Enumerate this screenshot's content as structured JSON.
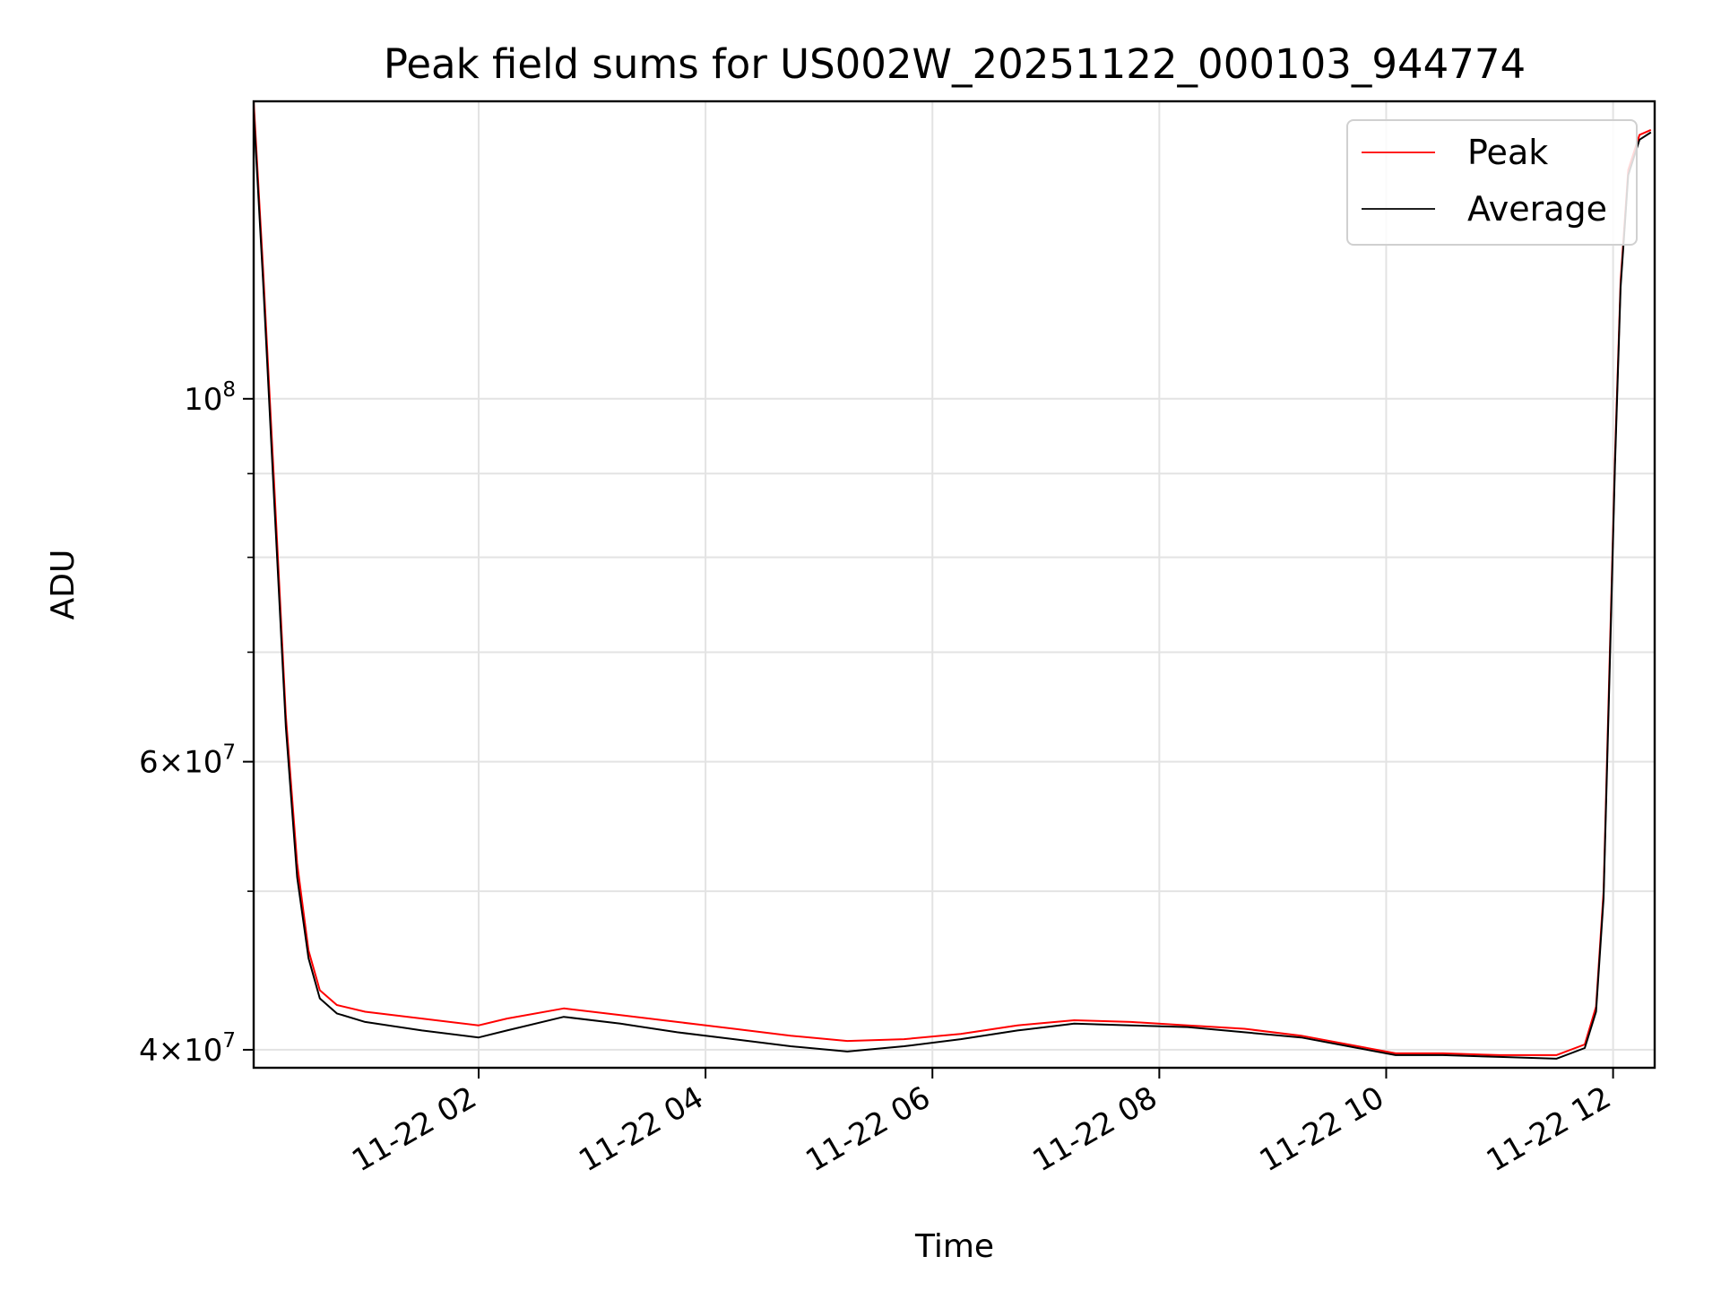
{
  "chart_data": {
    "type": "line",
    "title": "Peak field sums for US002W_20251122_000103_944774",
    "xlabel": "Time",
    "ylabel": "ADU",
    "y_scale": "log",
    "grid": true,
    "legend_position": "top-right",
    "xlim": [
      "2025-11-22 00:01",
      "2025-11-22 12:22"
    ],
    "ylim": [
      39000000,
      152000000
    ],
    "x_ticks": [
      "11-22 02",
      "11-22 04",
      "11-22 06",
      "11-22 08",
      "11-22 10",
      "11-22 12"
    ],
    "x_tick_times": [
      "2025-11-22 02:00",
      "2025-11-22 04:00",
      "2025-11-22 06:00",
      "2025-11-22 08:00",
      "2025-11-22 10:00",
      "2025-11-22 12:00"
    ],
    "y_ticks": [
      {
        "value": 100000000,
        "mantissa": "",
        "exponent": "8"
      },
      {
        "value": 60000000,
        "mantissa": "6",
        "exponent": "7"
      },
      {
        "value": 40000000,
        "mantissa": "4",
        "exponent": "7"
      }
    ],
    "y_minor_ticks": [
      50000000,
      70000000,
      80000000,
      90000000
    ],
    "series": [
      {
        "name": "Peak",
        "color": "#ff0000",
        "x": [
          "2025-11-22 00:01",
          "2025-11-22 00:06",
          "2025-11-22 00:12",
          "2025-11-22 00:18",
          "2025-11-22 00:24",
          "2025-11-22 00:30",
          "2025-11-22 00:36",
          "2025-11-22 00:45",
          "2025-11-22 01:00",
          "2025-11-22 01:30",
          "2025-11-22 02:00",
          "2025-11-22 02:15",
          "2025-11-22 02:45",
          "2025-11-22 03:15",
          "2025-11-22 03:45",
          "2025-11-22 04:15",
          "2025-11-22 04:45",
          "2025-11-22 05:15",
          "2025-11-22 05:45",
          "2025-11-22 06:15",
          "2025-11-22 06:45",
          "2025-11-22 07:15",
          "2025-11-22 07:45",
          "2025-11-22 08:15",
          "2025-11-22 08:45",
          "2025-11-22 09:15",
          "2025-11-22 09:45",
          "2025-11-22 10:05",
          "2025-11-22 10:30",
          "2025-11-22 11:00",
          "2025-11-22 11:30",
          "2025-11-22 11:45",
          "2025-11-22 11:51",
          "2025-11-22 11:55",
          "2025-11-22 11:58",
          "2025-11-22 12:01",
          "2025-11-22 12:04",
          "2025-11-22 12:08",
          "2025-11-22 12:14",
          "2025-11-22 12:20"
        ],
        "y": [
          152000000,
          120000000,
          88000000,
          64000000,
          52000000,
          46000000,
          43500000,
          42600000,
          42200000,
          41800000,
          41400000,
          41800000,
          42400000,
          42000000,
          41600000,
          41200000,
          40800000,
          40500000,
          40600000,
          40900000,
          41400000,
          41700000,
          41600000,
          41400000,
          41200000,
          40800000,
          40200000,
          39800000,
          39800000,
          39700000,
          39700000,
          40300000,
          42500000,
          50000000,
          68000000,
          92000000,
          118000000,
          138000000,
          145000000,
          146000000
        ]
      },
      {
        "name": "Average",
        "color": "#000000",
        "x": [
          "2025-11-22 00:01",
          "2025-11-22 00:06",
          "2025-11-22 00:12",
          "2025-11-22 00:18",
          "2025-11-22 00:24",
          "2025-11-22 00:30",
          "2025-11-22 00:36",
          "2025-11-22 00:45",
          "2025-11-22 01:00",
          "2025-11-22 01:30",
          "2025-11-22 02:00",
          "2025-11-22 02:15",
          "2025-11-22 02:45",
          "2025-11-22 03:15",
          "2025-11-22 03:45",
          "2025-11-22 04:15",
          "2025-11-22 04:45",
          "2025-11-22 05:15",
          "2025-11-22 05:45",
          "2025-11-22 06:15",
          "2025-11-22 06:45",
          "2025-11-22 07:15",
          "2025-11-22 07:45",
          "2025-11-22 08:15",
          "2025-11-22 08:45",
          "2025-11-22 09:15",
          "2025-11-22 09:45",
          "2025-11-22 10:05",
          "2025-11-22 10:30",
          "2025-11-22 11:00",
          "2025-11-22 11:30",
          "2025-11-22 11:45",
          "2025-11-22 11:51",
          "2025-11-22 11:55",
          "2025-11-22 11:58",
          "2025-11-22 12:01",
          "2025-11-22 12:04",
          "2025-11-22 12:08",
          "2025-11-22 12:14",
          "2025-11-22 12:20"
        ],
        "y": [
          150000000,
          118000000,
          86000000,
          63000000,
          51000000,
          45500000,
          43000000,
          42100000,
          41600000,
          41100000,
          40700000,
          41100000,
          41900000,
          41500000,
          41000000,
          40600000,
          40200000,
          39900000,
          40200000,
          40600000,
          41100000,
          41500000,
          41400000,
          41300000,
          41000000,
          40700000,
          40100000,
          39700000,
          39700000,
          39600000,
          39500000,
          40100000,
          42200000,
          49500000,
          67000000,
          91000000,
          117000000,
          137000000,
          144000000,
          145500000
        ]
      }
    ]
  }
}
